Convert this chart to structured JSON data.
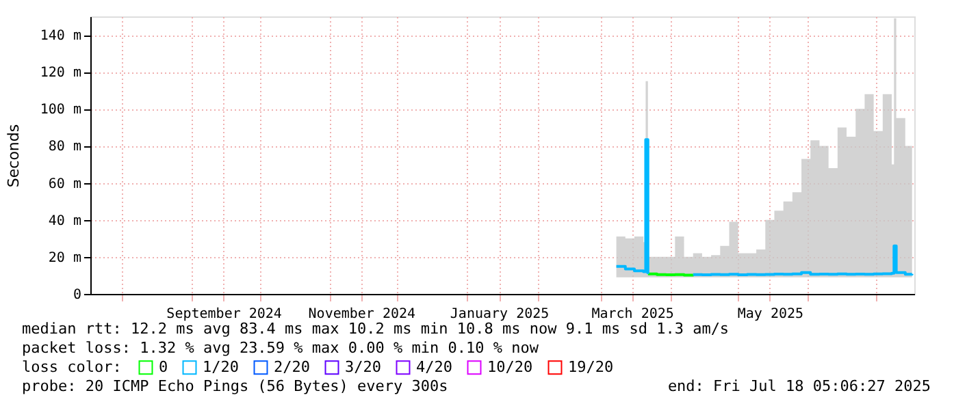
{
  "chart_data": {
    "type": "line",
    "ylabel": "Seconds",
    "x": [
      "2025-03-08",
      "2025-03-12",
      "2025-03-16",
      "2025-03-20",
      "2025-03-21",
      "2025-03-22",
      "2025-03-26",
      "2025-03-30",
      "2025-04-03",
      "2025-04-07",
      "2025-04-11",
      "2025-04-15",
      "2025-04-19",
      "2025-04-23",
      "2025-04-27",
      "2025-05-01",
      "2025-05-05",
      "2025-05-09",
      "2025-05-13",
      "2025-05-17",
      "2025-05-21",
      "2025-05-25",
      "2025-05-29",
      "2025-06-02",
      "2025-06-06",
      "2025-06-10",
      "2025-06-14",
      "2025-06-18",
      "2025-06-22",
      "2025-06-26",
      "2025-06-30",
      "2025-07-04",
      "2025-07-08",
      "2025-07-09",
      "2025-07-10",
      "2025-07-14",
      "2025-07-17"
    ],
    "series": [
      {
        "name": "0",
        "color": "#00ff00",
        "values": [
          null,
          null,
          null,
          null,
          null,
          10.8,
          10.4,
          10.3,
          10.4,
          10.2,
          10.4,
          null,
          null,
          null,
          null,
          null,
          null,
          null,
          null,
          null,
          null,
          null,
          null,
          null,
          null,
          null,
          null,
          null,
          null,
          null,
          null,
          null,
          null,
          null,
          null,
          null,
          null
        ]
      },
      {
        "name": "1/20",
        "color": "#00b8ff",
        "values": [
          14.9,
          13.5,
          12.5,
          12,
          83.4,
          10.8,
          null,
          null,
          null,
          null,
          10.4,
          10.3,
          10.5,
          10.4,
          10.6,
          10.3,
          10.5,
          10.4,
          10.5,
          10.7,
          10.6,
          10.8,
          11.5,
          10.6,
          10.7,
          10.6,
          10.8,
          10.6,
          10.7,
          10.6,
          10.8,
          10.9,
          11.2,
          26,
          11.5,
          10.6,
          10.8
        ],
        "lower": [
          9,
          9,
          9,
          9,
          9,
          9,
          9,
          9,
          9,
          9,
          9,
          9,
          9,
          9,
          9,
          9,
          9,
          9,
          9,
          9,
          9,
          9,
          9,
          9,
          9,
          9,
          9,
          9,
          9,
          9,
          9,
          9,
          9,
          9,
          9,
          9,
          9
        ],
        "upper": [
          31,
          30,
          31,
          28,
          115,
          20,
          20,
          20,
          31,
          20,
          22,
          20,
          21,
          26,
          39,
          22,
          22,
          24,
          40,
          45,
          50,
          55,
          73,
          83,
          80,
          68,
          90,
          85,
          100,
          108,
          88,
          108,
          70,
          149,
          95,
          80,
          30
        ]
      },
      {
        "name": "2/20",
        "color": "#0059ff",
        "values": [
          null,
          null,
          null,
          null,
          null,
          null,
          null,
          null,
          null,
          null,
          null,
          null,
          null,
          null,
          null,
          null,
          null,
          null,
          null,
          null,
          null,
          null,
          null,
          null,
          null,
          null,
          null,
          null,
          null,
          null,
          null,
          null,
          null,
          null,
          null,
          null,
          null
        ]
      },
      {
        "name": "3/20",
        "color": "#5e00ff",
        "values": [
          null,
          null,
          null,
          null,
          null,
          null,
          null,
          null,
          null,
          null,
          null,
          null,
          null,
          null,
          null,
          null,
          null,
          null,
          null,
          null,
          null,
          null,
          null,
          null,
          null,
          null,
          null,
          null,
          null,
          null,
          null,
          null,
          null,
          null,
          null,
          null,
          null
        ]
      },
      {
        "name": "4/20",
        "color": "#7e00ff",
        "values": [
          null,
          null,
          null,
          null,
          null,
          null,
          null,
          null,
          null,
          null,
          null,
          null,
          null,
          null,
          null,
          null,
          null,
          null,
          null,
          null,
          null,
          null,
          null,
          null,
          null,
          null,
          null,
          null,
          null,
          null,
          null,
          null,
          null,
          null,
          null,
          null,
          null
        ]
      },
      {
        "name": "10/20",
        "color": "#dd00ff",
        "values": [
          null,
          null,
          null,
          null,
          null,
          null,
          null,
          null,
          null,
          null,
          null,
          null,
          null,
          null,
          null,
          null,
          null,
          null,
          null,
          null,
          null,
          null,
          null,
          null,
          null,
          null,
          null,
          null,
          null,
          null,
          null,
          null,
          null,
          null,
          null,
          null,
          null
        ]
      },
      {
        "name": "19/20",
        "color": "#ff0000",
        "values": [
          null,
          null,
          null,
          null,
          null,
          null,
          null,
          null,
          null,
          null,
          null,
          null,
          null,
          null,
          null,
          null,
          null,
          null,
          null,
          null,
          null,
          null,
          null,
          null,
          null,
          null,
          null,
          null,
          null,
          null,
          null,
          null,
          null,
          null,
          null,
          null,
          null
        ]
      }
    ],
    "legend_title": "loss color:",
    "legend": "bottom",
    "xlim": [
      "2024-07-18",
      "2025-07-18"
    ],
    "xticks": [
      {
        "value": "2024-08-01",
        "label": null
      },
      {
        "value": "2024-09-01",
        "label": null
      },
      {
        "value": "2024-09-15",
        "label": "September 2024"
      },
      {
        "value": "2024-10-01",
        "label": null
      },
      {
        "value": "2024-11-01",
        "label": null
      },
      {
        "value": "2024-11-15",
        "label": "November 2024"
      },
      {
        "value": "2024-12-01",
        "label": null
      },
      {
        "value": "2025-01-01",
        "label": null
      },
      {
        "value": "2025-01-15",
        "label": "January 2025"
      },
      {
        "value": "2025-02-01",
        "label": null
      },
      {
        "value": "2025-03-01",
        "label": null
      },
      {
        "value": "2025-03-15",
        "label": "March 2025"
      },
      {
        "value": "2025-04-01",
        "label": null
      },
      {
        "value": "2025-05-01",
        "label": null
      },
      {
        "value": "2025-05-15",
        "label": "May 2025"
      },
      {
        "value": "2025-06-01",
        "label": null
      },
      {
        "value": "2025-07-01",
        "label": null
      }
    ],
    "ylim": [
      0,
      150
    ],
    "yticks": [
      0,
      {
        "value": 20,
        "label": "20 m"
      },
      {
        "value": 40,
        "label": "40 m"
      },
      {
        "value": 60,
        "label": "60 m"
      },
      {
        "value": 80,
        "label": "80 m"
      },
      {
        "value": 100,
        "label": "100 m"
      },
      {
        "value": 120,
        "label": "120 m"
      },
      {
        "value": 140,
        "label": "140 m"
      }
    ],
    "grid": true,
    "annotations": [
      "median rtt:  12.2 ms avg  83.4 ms max  10.2 ms min  10.8 ms now  9.1 ms sd  1.3   am/s",
      "packet loss: 1.32 % avg  23.59 % max  0.00 % min  0.10 % now",
      "probe:       20 ICMP Echo Pings (56 Bytes) every 300s",
      "end: Fri Jul 18 05:06:27 2025"
    ]
  }
}
